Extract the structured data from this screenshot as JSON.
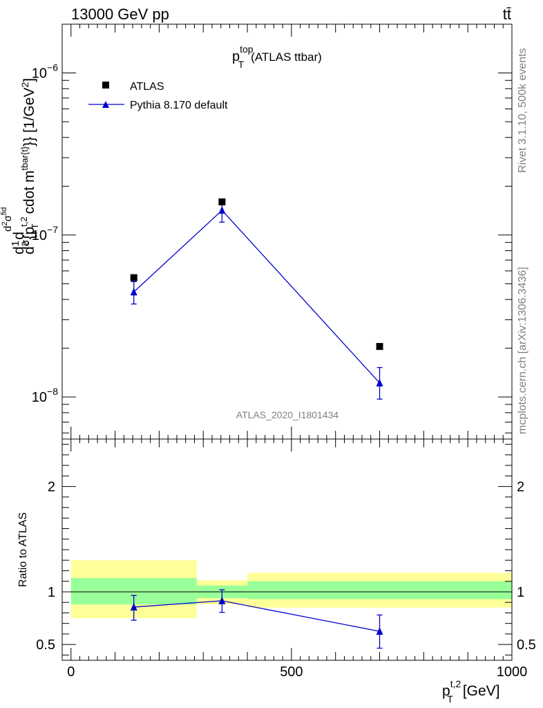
{
  "header": {
    "energy_label": "13000 GeV pp",
    "process_label": "tt̄"
  },
  "side_labels": {
    "rivet": "Rivet 3.1.10,  500k events",
    "source": "mcplots.cern.ch [arXiv:1306.3436]"
  },
  "chart_data": [
    {
      "type": "scatter",
      "title": "p_T^top (ATLAS ttbar)",
      "title_main": "p",
      "title_sup": "top",
      "title_sub": "T",
      "title_rest": "(ATLAS ttbar)",
      "watermark": "ATLAS_2020_I1801434",
      "ylabel": "d(1/σ)d d²σ^fid / d² {p_T^t,2 cdot m^tbar{t}} [1/GeV²]",
      "ylabel_parts": {
        "frac_pre": "d",
        "one": "1",
        "sigma": "σ",
        "d": "d",
        "num_top": "d",
        "num_exp": "2",
        "num_sigma": "σ",
        "num_sup": "fid",
        "den": "d",
        "den_exp": "2",
        "den_brace": "{p",
        "den_sup": "t,2",
        "den_sub": "T",
        "den_mid": " cdot m",
        "den_sup2": "tbar{t}",
        "den_end": "}} [1/GeV",
        "den_unit_exp": "2",
        "den_close": "]"
      },
      "yscale": "log",
      "ylim": [
        5.5e-09,
        2e-06
      ],
      "xlim": [
        -20,
        1000
      ],
      "y_ticks": [
        {
          "value": 1e-06,
          "base": "10",
          "exp": "−6"
        },
        {
          "value": 1e-07,
          "base": "10",
          "exp": "−7"
        },
        {
          "value": 1e-08,
          "base": "10",
          "exp": "−8"
        }
      ],
      "legend_position": "top-left",
      "series": [
        {
          "name": "ATLAS",
          "marker": "square",
          "color": "#000000",
          "x": [
            142.5,
            342.5,
            700
          ],
          "y": [
            5.45e-08,
            1.6e-07,
            2.05e-08
          ]
        },
        {
          "name": "Pythia 8.170 default",
          "marker": "triangle",
          "color": "#0000cc",
          "line": true,
          "x": [
            142.5,
            342.5,
            700
          ],
          "y": [
            4.45e-08,
            1.42e-07,
            1.22e-08
          ],
          "yerr_low": [
            3.75e-08,
            1.2e-07,
            9.7e-09
          ],
          "yerr_high": [
            5.15e-08,
            1.62e-07,
            1.52e-08
          ]
        }
      ]
    },
    {
      "type": "scatter",
      "ylabel": "Ratio to ATLAS",
      "xlabel": "p_T^t,2 [GeV]",
      "xlabel_main": "p",
      "xlabel_sup": "t,2",
      "xlabel_sub": "T",
      "xlabel_rest": "[GeV]",
      "xlim": [
        -20,
        1000
      ],
      "ylim": [
        0.35,
        2.45
      ],
      "x_ticks": [
        0,
        500,
        1000
      ],
      "y_ticks": [
        0.5,
        1,
        2
      ],
      "reference_line": 1,
      "bands": [
        {
          "x": [
            0,
            285
          ],
          "yellow": [
            0.75,
            1.3
          ],
          "green": [
            0.88,
            1.13
          ]
        },
        {
          "x": [
            285,
            400
          ],
          "yellow": [
            0.88,
            1.11
          ],
          "green": [
            0.94,
            1.06
          ]
        },
        {
          "x": [
            400,
            1000
          ],
          "yellow": [
            0.85,
            1.18
          ],
          "green": [
            0.93,
            1.1
          ]
        }
      ],
      "band_colors": {
        "yellow": "#ffff99",
        "green": "#99ff99"
      },
      "series": [
        {
          "name": "Pythia 8.170 default",
          "marker": "triangle",
          "color": "#0000cc",
          "x": [
            142.5,
            342.5,
            700
          ],
          "y": [
            0.855,
            0.915,
            0.625
          ],
          "yerr_low": [
            0.73,
            0.805,
            0.465
          ],
          "yerr_high": [
            0.965,
            1.02,
            0.78
          ]
        }
      ]
    }
  ]
}
